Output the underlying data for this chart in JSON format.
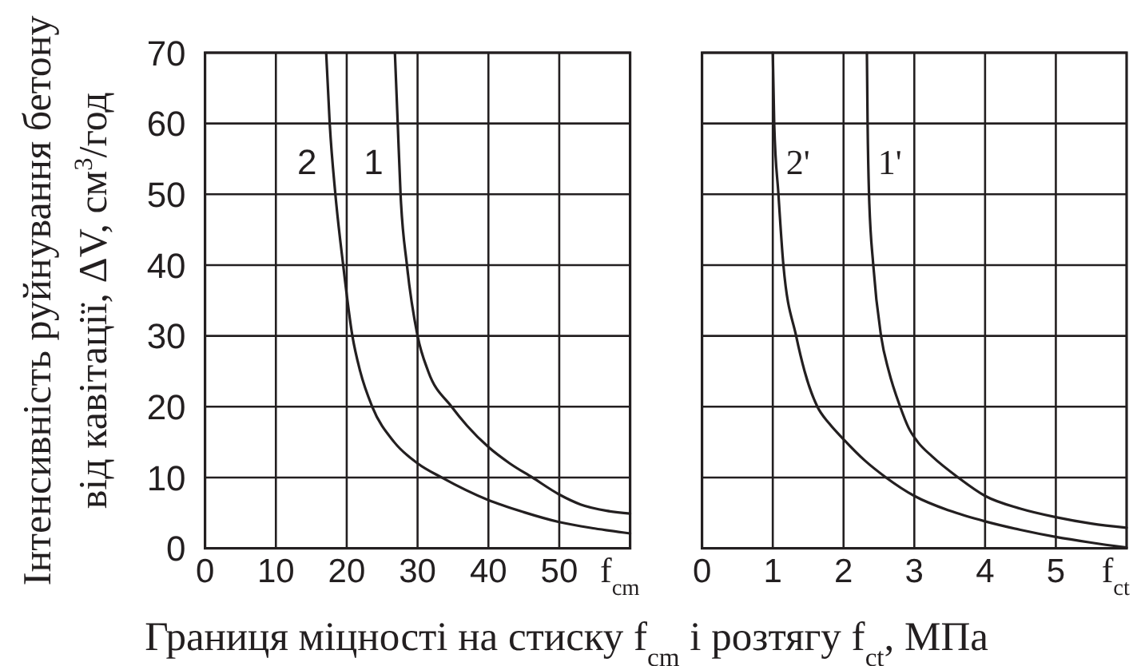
{
  "chart_data": [
    {
      "type": "line",
      "ylabel": "Інтенсивність руйнування бетону\nвід кавітації, ΔV, см$^{3}$/год",
      "xlabel": "f$_{cm}$",
      "annotations": [
        "Границя міцності на стиску f$_{cm}$ і розтягу f$_{ct}$, МПа"
      ],
      "xlim": [
        0,
        60
      ],
      "xticks": [
        0,
        10,
        20,
        30,
        40,
        50
      ],
      "ylim": [
        0,
        70
      ],
      "yticks": [
        0,
        10,
        20,
        30,
        40,
        50,
        60,
        70
      ],
      "grid": true,
      "series": [
        {
          "name": "2",
          "color": "#231f20",
          "x": [
            17.1,
            17.6,
            18.4,
            19.5,
            20.8,
            21.9,
            23.6,
            26.7,
            30,
            33.4,
            40,
            45,
            50,
            55,
            60
          ],
          "values": [
            70,
            60,
            50,
            40,
            30,
            25,
            20,
            15,
            12,
            10,
            6.8,
            5.1,
            3.7,
            2.8,
            2.1
          ]
        },
        {
          "name": "1",
          "color": "#231f20",
          "x": [
            26.8,
            27.2,
            27.6,
            28.5,
            30,
            31.5,
            34.8,
            37,
            40,
            43,
            46.2,
            50,
            53,
            56.7,
            60
          ],
          "values": [
            70,
            60,
            50,
            40,
            30,
            25,
            20,
            17.3,
            14.3,
            12,
            10,
            7.6,
            6.2,
            5.3,
            4.9
          ]
        }
      ]
    },
    {
      "type": "line",
      "xlabel": "f$_{ct}$",
      "xlim": [
        0,
        6
      ],
      "xticks": [
        0,
        1,
        2,
        3,
        4,
        5
      ],
      "ylim": [
        0,
        70
      ],
      "yticks": [
        0,
        10,
        20,
        30,
        40,
        50,
        60,
        70
      ],
      "grid": true,
      "tick_labels": "x",
      "series": [
        {
          "name": "2'",
          "color": "#231f20",
          "x": [
            1.0,
            1.02,
            1.08,
            1.15,
            1.33,
            1.45,
            1.63,
            1.8,
            2.0,
            2.3,
            2.6,
            3,
            3.5,
            4,
            4.5,
            5,
            5.5,
            6
          ],
          "values": [
            70,
            60,
            50,
            40,
            30,
            25,
            20,
            17.6,
            15.4,
            12.4,
            10,
            7.4,
            5.3,
            3.8,
            2.6,
            1.6,
            0.8,
            0.1
          ]
        },
        {
          "name": "1'",
          "color": "#231f20",
          "x": [
            2.33,
            2.34,
            2.36,
            2.42,
            2.53,
            2.64,
            2.8,
            2.92,
            3.05,
            3.25,
            3.62,
            4,
            4.5,
            5,
            5.5,
            6
          ],
          "values": [
            70,
            60,
            50,
            40,
            30,
            25,
            20,
            17,
            15,
            13,
            10,
            7.4,
            5.6,
            4.4,
            3.5,
            2.9
          ]
        }
      ]
    }
  ]
}
